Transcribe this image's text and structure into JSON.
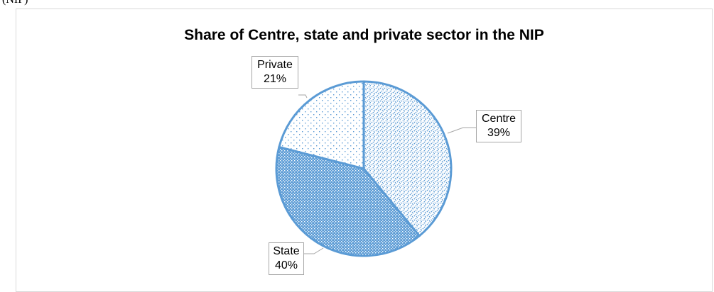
{
  "caption": "(NIP)",
  "chart_data": {
    "type": "pie",
    "title": "Share of Centre, state and private sector in the NIP",
    "categories": [
      "Centre",
      "State",
      "Private"
    ],
    "values": [
      39,
      40,
      21
    ],
    "labels": [
      {
        "name": "Centre",
        "value": "39%"
      },
      {
        "name": "State",
        "value": "40%"
      },
      {
        "name": "Private",
        "value": "21%"
      }
    ],
    "colors": {
      "fill": "#5b9bd5",
      "stroke": "#5b9bd5",
      "background": "#ffffff"
    }
  }
}
